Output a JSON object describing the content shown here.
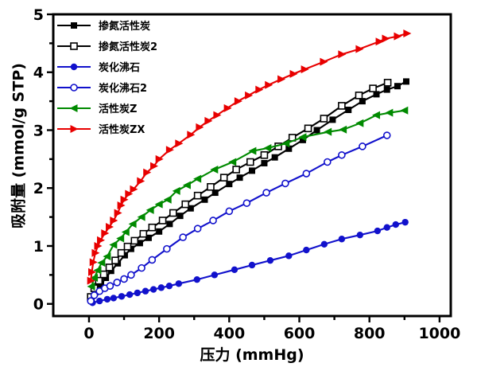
{
  "chart_data": {
    "type": "line",
    "title": "",
    "xlabel": "压力  (mmHg)",
    "ylabel": "吸附量  (mmol/g STP)",
    "xlim": [
      -102,
      1032
    ],
    "ylim": [
      -0.21,
      5.0
    ],
    "xticks": [
      0,
      200,
      400,
      600,
      800,
      1000
    ],
    "yticks": [
      0,
      1,
      2,
      3,
      4,
      5
    ],
    "minor_x_step": 100,
    "minor_y_step": 0.5,
    "grid": false,
    "legend_position": "top-left",
    "background": "#ffffff",
    "axis_color": "#000000",
    "series": [
      {
        "name": "掺氮活性炭",
        "color": "#000000",
        "marker": "square-filled",
        "points": [
          [
            5,
            0.08
          ],
          [
            18,
            0.2
          ],
          [
            34,
            0.33
          ],
          [
            48,
            0.45
          ],
          [
            63,
            0.57
          ],
          [
            82,
            0.7
          ],
          [
            102,
            0.84
          ],
          [
            120,
            0.95
          ],
          [
            145,
            1.05
          ],
          [
            170,
            1.14
          ],
          [
            200,
            1.25
          ],
          [
            230,
            1.38
          ],
          [
            260,
            1.52
          ],
          [
            290,
            1.65
          ],
          [
            330,
            1.8
          ],
          [
            360,
            1.92
          ],
          [
            400,
            2.07
          ],
          [
            430,
            2.18
          ],
          [
            465,
            2.3
          ],
          [
            500,
            2.43
          ],
          [
            530,
            2.53
          ],
          [
            570,
            2.68
          ],
          [
            610,
            2.83
          ],
          [
            650,
            3.0
          ],
          [
            695,
            3.18
          ],
          [
            740,
            3.35
          ],
          [
            780,
            3.5
          ],
          [
            820,
            3.62
          ],
          [
            850,
            3.7
          ],
          [
            880,
            3.76
          ],
          [
            905,
            3.84
          ]
        ]
      },
      {
        "name": "掺氮活性炭2",
        "color": "#000000",
        "marker": "square-open",
        "points": [
          [
            5,
            0.12
          ],
          [
            15,
            0.27
          ],
          [
            28,
            0.4
          ],
          [
            42,
            0.51
          ],
          [
            58,
            0.63
          ],
          [
            75,
            0.75
          ],
          [
            92,
            0.88
          ],
          [
            110,
            0.99
          ],
          [
            130,
            1.09
          ],
          [
            155,
            1.21
          ],
          [
            180,
            1.32
          ],
          [
            210,
            1.44
          ],
          [
            240,
            1.57
          ],
          [
            275,
            1.72
          ],
          [
            310,
            1.87
          ],
          [
            347,
            2.02
          ],
          [
            385,
            2.18
          ],
          [
            420,
            2.32
          ],
          [
            460,
            2.45
          ],
          [
            500,
            2.57
          ],
          [
            540,
            2.72
          ],
          [
            580,
            2.87
          ],
          [
            625,
            3.03
          ],
          [
            670,
            3.2
          ],
          [
            721,
            3.42
          ],
          [
            770,
            3.6
          ],
          [
            810,
            3.72
          ],
          [
            852,
            3.82
          ]
        ]
      },
      {
        "name": "炭化沸石",
        "color": "#1111cc",
        "marker": "circle-filled",
        "points": [
          [
            10,
            0.02
          ],
          [
            30,
            0.05
          ],
          [
            52,
            0.08
          ],
          [
            70,
            0.1
          ],
          [
            93,
            0.13
          ],
          [
            116,
            0.16
          ],
          [
            138,
            0.19
          ],
          [
            161,
            0.22
          ],
          [
            184,
            0.25
          ],
          [
            206,
            0.28
          ],
          [
            229,
            0.31
          ],
          [
            256,
            0.35
          ],
          [
            308,
            0.42
          ],
          [
            358,
            0.5
          ],
          [
            415,
            0.59
          ],
          [
            465,
            0.67
          ],
          [
            517,
            0.75
          ],
          [
            570,
            0.83
          ],
          [
            620,
            0.93
          ],
          [
            671,
            1.03
          ],
          [
            721,
            1.12
          ],
          [
            773,
            1.19
          ],
          [
            823,
            1.26
          ],
          [
            850,
            1.32
          ],
          [
            875,
            1.37
          ],
          [
            902,
            1.41
          ]
        ]
      },
      {
        "name": "炭化沸石2",
        "color": "#1111cc",
        "marker": "circle-open",
        "points": [
          [
            5,
            0.05
          ],
          [
            15,
            0.15
          ],
          [
            30,
            0.22
          ],
          [
            45,
            0.27
          ],
          [
            60,
            0.31
          ],
          [
            80,
            0.37
          ],
          [
            100,
            0.43
          ],
          [
            120,
            0.5
          ],
          [
            150,
            0.62
          ],
          [
            180,
            0.76
          ],
          [
            222,
            0.95
          ],
          [
            268,
            1.15
          ],
          [
            310,
            1.3
          ],
          [
            354,
            1.44
          ],
          [
            400,
            1.6
          ],
          [
            450,
            1.74
          ],
          [
            506,
            1.92
          ],
          [
            560,
            2.08
          ],
          [
            620,
            2.25
          ],
          [
            680,
            2.45
          ],
          [
            721,
            2.57
          ],
          [
            780,
            2.72
          ],
          [
            850,
            2.91
          ]
        ]
      },
      {
        "name": "活性炭Z",
        "color": "#008a00",
        "marker": "triangle-left-filled",
        "points": [
          [
            7,
            0.3
          ],
          [
            15,
            0.45
          ],
          [
            25,
            0.58
          ],
          [
            36,
            0.71
          ],
          [
            52,
            0.82
          ],
          [
            70,
            1.02
          ],
          [
            90,
            1.13
          ],
          [
            105,
            1.24
          ],
          [
            125,
            1.38
          ],
          [
            150,
            1.5
          ],
          [
            175,
            1.62
          ],
          [
            200,
            1.72
          ],
          [
            225,
            1.8
          ],
          [
            250,
            1.95
          ],
          [
            280,
            2.05
          ],
          [
            310,
            2.16
          ],
          [
            358,
            2.32
          ],
          [
            410,
            2.45
          ],
          [
            467,
            2.64
          ],
          [
            510,
            2.69
          ],
          [
            562,
            2.77
          ],
          [
            610,
            2.88
          ],
          [
            682,
            2.97
          ],
          [
            725,
            3.01
          ],
          [
            773,
            3.12
          ],
          [
            820,
            3.26
          ],
          [
            857,
            3.3
          ],
          [
            900,
            3.34
          ]
        ]
      },
      {
        "name": "活性炭ZX",
        "color": "#e80000",
        "marker": "triangle-right-filled",
        "points": [
          [
            5,
            0.4
          ],
          [
            8,
            0.55
          ],
          [
            12,
            0.72
          ],
          [
            18,
            0.88
          ],
          [
            25,
            1.0
          ],
          [
            33,
            1.1
          ],
          [
            45,
            1.22
          ],
          [
            58,
            1.33
          ],
          [
            70,
            1.44
          ],
          [
            82,
            1.57
          ],
          [
            91,
            1.7
          ],
          [
            100,
            1.8
          ],
          [
            113,
            1.9
          ],
          [
            127,
            1.98
          ],
          [
            147,
            2.12
          ],
          [
            165,
            2.27
          ],
          [
            185,
            2.38
          ],
          [
            200,
            2.5
          ],
          [
            230,
            2.66
          ],
          [
            256,
            2.77
          ],
          [
            290,
            2.92
          ],
          [
            315,
            3.05
          ],
          [
            340,
            3.16
          ],
          [
            365,
            3.26
          ],
          [
            395,
            3.38
          ],
          [
            425,
            3.5
          ],
          [
            455,
            3.6
          ],
          [
            485,
            3.7
          ],
          [
            512,
            3.78
          ],
          [
            548,
            3.88
          ],
          [
            583,
            3.97
          ],
          [
            615,
            4.05
          ],
          [
            669,
            4.18
          ],
          [
            721,
            4.31
          ],
          [
            771,
            4.4
          ],
          [
            828,
            4.53
          ],
          [
            846,
            4.58
          ],
          [
            880,
            4.62
          ],
          [
            907,
            4.67
          ]
        ]
      }
    ]
  }
}
